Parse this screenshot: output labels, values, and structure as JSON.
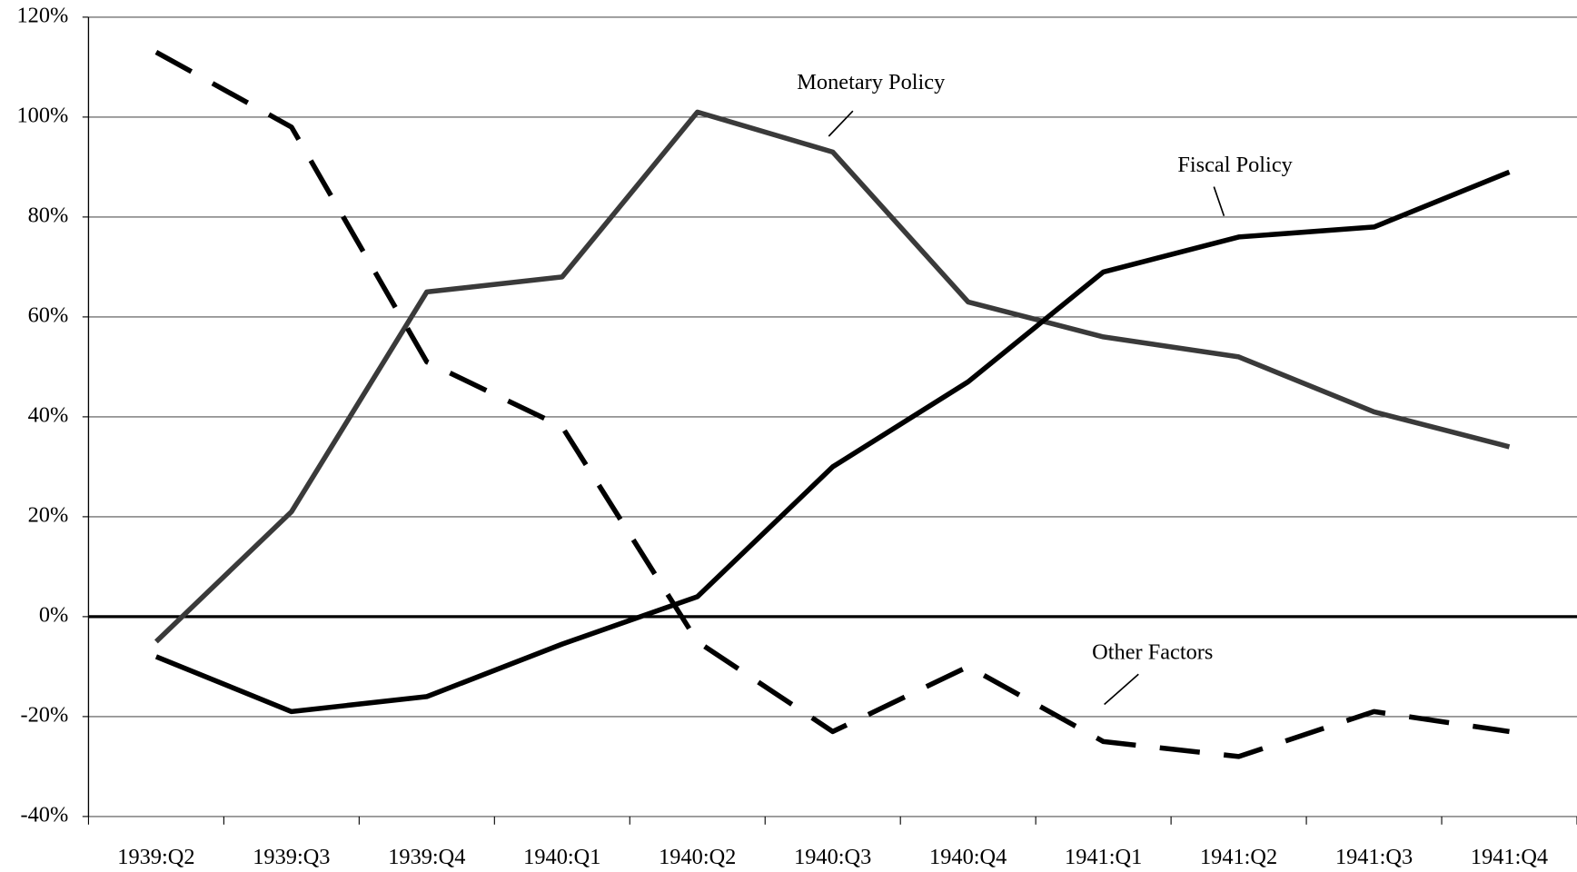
{
  "chart_data": {
    "type": "line",
    "categories": [
      "1939:Q2",
      "1939:Q3",
      "1939:Q4",
      "1940:Q1",
      "1940:Q2",
      "1940:Q3",
      "1940:Q4",
      "1941:Q1",
      "1941:Q2",
      "1941:Q3",
      "1941:Q4"
    ],
    "series": [
      {
        "name": "Monetary Policy",
        "color": "#3a3a3a",
        "values": [
          -5,
          21,
          65,
          68,
          101,
          93,
          63,
          56,
          52,
          41,
          34
        ]
      },
      {
        "name": "Fiscal Policy",
        "color": "#000000",
        "values": [
          -8,
          -19,
          -16,
          -5.5,
          4,
          30,
          47,
          69,
          76,
          78,
          89
        ]
      },
      {
        "name": "Other Factors",
        "color": "#000000",
        "dashed": true,
        "values": [
          113,
          98,
          51,
          38,
          -5,
          -23,
          -10,
          -25,
          -28,
          -19,
          -23
        ]
      }
    ],
    "ylim": [
      -40,
      120
    ],
    "yticks": [
      {
        "value": -40,
        "label": "-40%"
      },
      {
        "value": -20,
        "label": "-20%"
      },
      {
        "value": 0,
        "label": "0%"
      },
      {
        "value": 20,
        "label": "20%"
      },
      {
        "value": 40,
        "label": "40%"
      },
      {
        "value": 60,
        "label": "60%"
      },
      {
        "value": 80,
        "label": "80%"
      },
      {
        "value": 100,
        "label": "100%"
      },
      {
        "value": 120,
        "label": "120%"
      }
    ],
    "grid": true
  }
}
